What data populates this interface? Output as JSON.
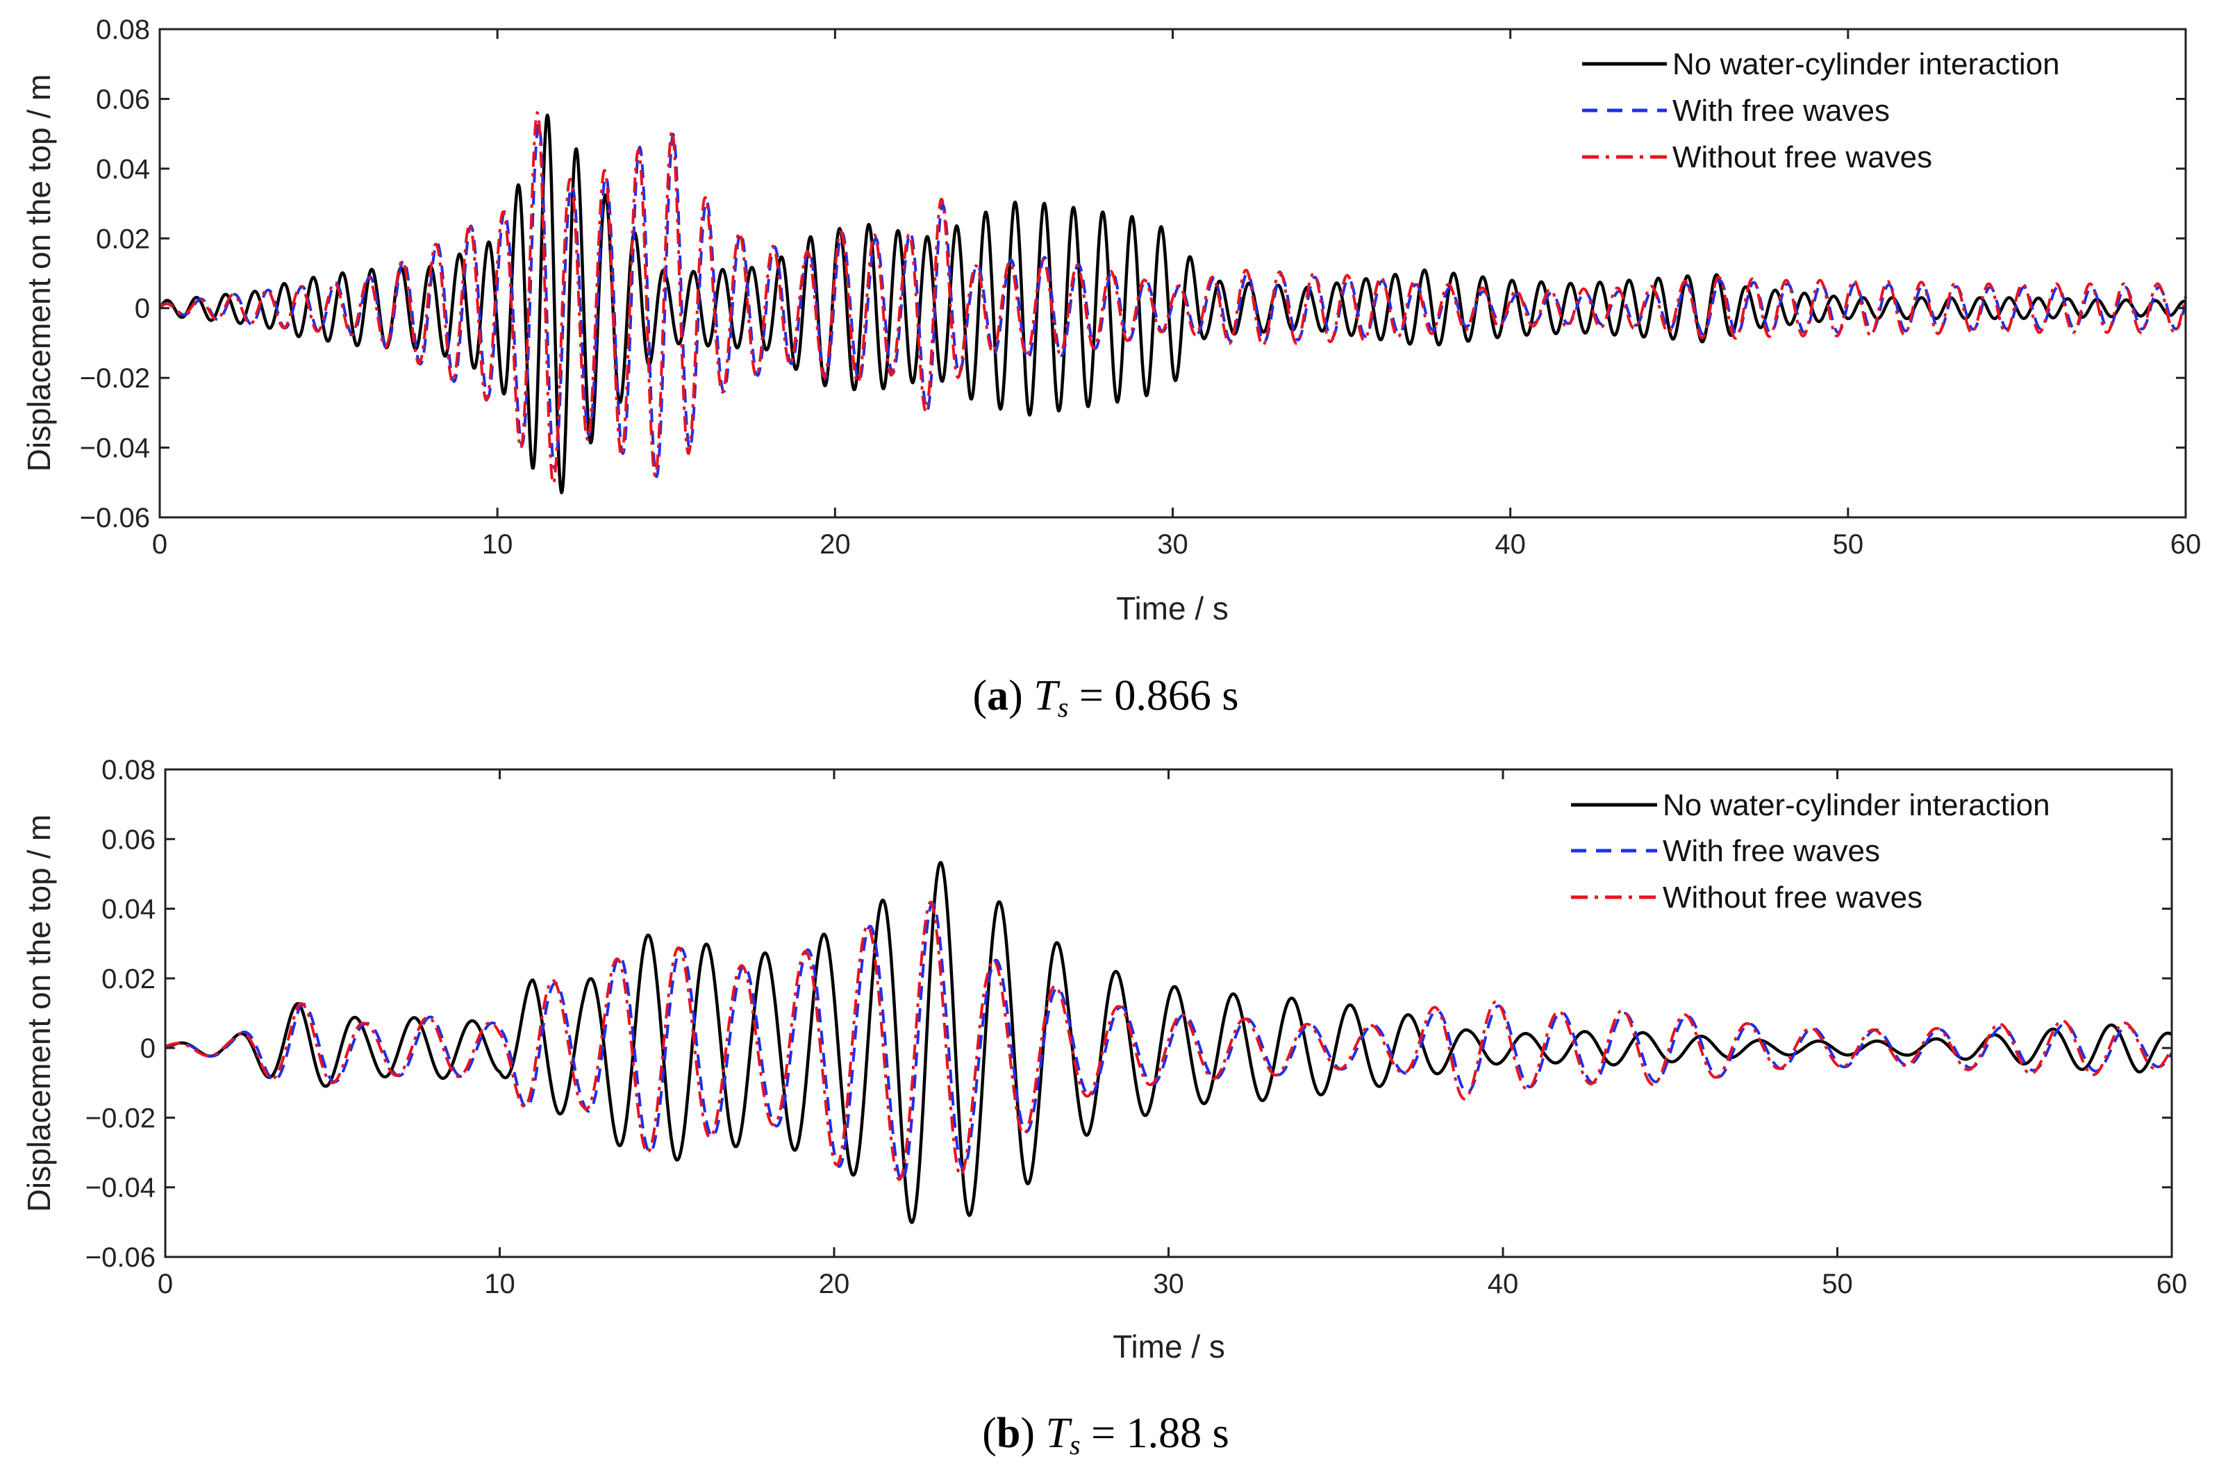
{
  "chart_data": [
    {
      "type": "line",
      "panel": "a",
      "caption": {
        "label": "a",
        "symbol": "T",
        "subscript": "s",
        "value_text": " = 0.866 s"
      },
      "xlabel": "Time / s",
      "ylabel": "Displacement on the top / m",
      "xlim": [
        0,
        60
      ],
      "ylim": [
        -0.06,
        0.08
      ],
      "xticks": [
        0,
        10,
        20,
        30,
        40,
        50,
        60
      ],
      "yticks": [
        -0.06,
        -0.04,
        -0.02,
        0,
        0.02,
        0.04,
        0.06,
        0.08
      ],
      "ytick_labels": [
        "−0.06",
        "−0.04",
        "−0.02",
        "0",
        "0.02",
        "0.04",
        "0.06",
        "0.08"
      ],
      "legend_position": "top-right",
      "series": [
        {
          "name": "No water-cylinder interaction",
          "color": "#000000",
          "style": "solid",
          "envelope": [
            [
              0,
              0.002
            ],
            [
              3,
              0.005
            ],
            [
              4,
              0.008
            ],
            [
              6,
              0.011
            ],
            [
              8,
              0.012
            ],
            [
              10,
              0.02
            ],
            [
              11,
              0.045
            ],
            [
              11.6,
              0.058
            ],
            [
              12.5,
              0.043
            ],
            [
              13,
              0.035
            ],
            [
              15,
              0.01
            ],
            [
              18,
              0.012
            ],
            [
              19.5,
              0.022
            ],
            [
              21,
              0.024
            ],
            [
              23,
              0.02
            ],
            [
              24,
              0.026
            ],
            [
              25.5,
              0.031
            ],
            [
              27,
              0.029
            ],
            [
              29,
              0.026
            ],
            [
              30,
              0.022
            ],
            [
              31,
              0.008
            ],
            [
              34,
              0.006
            ],
            [
              37.5,
              0.011
            ],
            [
              40,
              0.008
            ],
            [
              42,
              0.007
            ],
            [
              45,
              0.009
            ],
            [
              46,
              0.01
            ],
            [
              47,
              0.006
            ],
            [
              50,
              0.003
            ],
            [
              55,
              0.003
            ],
            [
              60,
              0.002
            ]
          ],
          "period": 0.866
        },
        {
          "name": "With free waves",
          "color": "#1f2fe8",
          "style": "dashed",
          "envelope": [
            [
              0,
              0.001
            ],
            [
              3,
              0.005
            ],
            [
              6,
              0.008
            ],
            [
              7.5,
              0.015
            ],
            [
              8.5,
              0.02
            ],
            [
              9.5,
              0.025
            ],
            [
              10.3,
              0.028
            ],
            [
              11.3,
              0.055
            ],
            [
              12.2,
              0.035
            ],
            [
              13.3,
              0.038
            ],
            [
              14.3,
              0.047
            ],
            [
              15.2,
              0.05
            ],
            [
              16.5,
              0.025
            ],
            [
              17.5,
              0.02
            ],
            [
              19,
              0.015
            ],
            [
              20,
              0.022
            ],
            [
              21.2,
              0.02
            ],
            [
              22,
              0.018
            ],
            [
              23,
              0.034
            ],
            [
              24,
              0.012
            ],
            [
              26,
              0.015
            ],
            [
              28,
              0.011
            ],
            [
              30,
              0.006
            ],
            [
              32,
              0.01
            ],
            [
              34,
              0.009
            ],
            [
              36,
              0.008
            ],
            [
              40,
              0.004
            ],
            [
              44,
              0.005
            ],
            [
              46,
              0.008
            ],
            [
              48,
              0.007
            ],
            [
              50,
              0.007
            ],
            [
              54,
              0.006
            ],
            [
              58,
              0.006
            ],
            [
              60,
              0.006
            ]
          ],
          "period": 1.0
        },
        {
          "name": "Without free waves",
          "color": "#e8141e",
          "style": "dash-dot",
          "envelope": [
            [
              0,
              0.001
            ],
            [
              3,
              0.005
            ],
            [
              6,
              0.008
            ],
            [
              7.5,
              0.015
            ],
            [
              8.5,
              0.02
            ],
            [
              9.5,
              0.026
            ],
            [
              10.3,
              0.028
            ],
            [
              11.3,
              0.06
            ],
            [
              12.2,
              0.036
            ],
            [
              13.3,
              0.04
            ],
            [
              14.3,
              0.046
            ],
            [
              15.2,
              0.051
            ],
            [
              16.5,
              0.025
            ],
            [
              17.5,
              0.02
            ],
            [
              19,
              0.015
            ],
            [
              20,
              0.022
            ],
            [
              21.2,
              0.021
            ],
            [
              22,
              0.018
            ],
            [
              23,
              0.035
            ],
            [
              24,
              0.012
            ],
            [
              26,
              0.014
            ],
            [
              28,
              0.011
            ],
            [
              30,
              0.006
            ],
            [
              32,
              0.011
            ],
            [
              34,
              0.01
            ],
            [
              36,
              0.009
            ],
            [
              40,
              0.005
            ],
            [
              44,
              0.006
            ],
            [
              46,
              0.009
            ],
            [
              48,
              0.008
            ],
            [
              50,
              0.008
            ],
            [
              54,
              0.007
            ],
            [
              58,
              0.007
            ],
            [
              60,
              0.007
            ]
          ],
          "period": 1.0
        }
      ]
    },
    {
      "type": "line",
      "panel": "b",
      "caption": {
        "label": "b",
        "symbol": "T",
        "subscript": "s",
        "value_text": " = 1.88 s"
      },
      "xlabel": "Time / s",
      "ylabel": "Displacement on the top / m",
      "xlim": [
        0,
        60
      ],
      "ylim": [
        -0.06,
        0.08
      ],
      "xticks": [
        0,
        10,
        20,
        30,
        40,
        50,
        60
      ],
      "yticks": [
        -0.06,
        -0.04,
        -0.02,
        0,
        0.02,
        0.04,
        0.06,
        0.08
      ],
      "ytick_labels": [
        "−0.06",
        "−0.04",
        "−0.02",
        "0",
        "0.02",
        "0.04",
        "0.06",
        "0.08"
      ],
      "legend_position": "top-right",
      "series": [
        {
          "name": "No water-cylinder interaction",
          "color": "#000000",
          "style": "solid",
          "envelope": [
            [
              0,
              0.001
            ],
            [
              2,
              0.003
            ],
            [
              4,
              0.013
            ],
            [
              6,
              0.008
            ],
            [
              8,
              0.009
            ],
            [
              10,
              0.007
            ],
            [
              11,
              0.02
            ],
            [
              12.5,
              0.018
            ],
            [
              14,
              0.032
            ],
            [
              15,
              0.033
            ],
            [
              16.5,
              0.029
            ],
            [
              18.2,
              0.027
            ],
            [
              20.3,
              0.035
            ],
            [
              21.2,
              0.04
            ],
            [
              22,
              0.048
            ],
            [
              22.9,
              0.054
            ],
            [
              23.7,
              0.052
            ],
            [
              24.6,
              0.042
            ],
            [
              25.5,
              0.042
            ],
            [
              27,
              0.027
            ],
            [
              29,
              0.02
            ],
            [
              31,
              0.016
            ],
            [
              33,
              0.015
            ],
            [
              35,
              0.013
            ],
            [
              37,
              0.01
            ],
            [
              39,
              0.005
            ],
            [
              41,
              0.004
            ],
            [
              43,
              0.005
            ],
            [
              45,
              0.004
            ],
            [
              48,
              0.002
            ],
            [
              52,
              0.002
            ],
            [
              55,
              0.004
            ],
            [
              57,
              0.006
            ],
            [
              59,
              0.007
            ],
            [
              60,
              0.004
            ]
          ],
          "period": 1.75
        },
        {
          "name": "With free waves",
          "color": "#1f2fe8",
          "style": "dashed",
          "envelope": [
            [
              0,
              0.001
            ],
            [
              2,
              0.003
            ],
            [
              4,
              0.013
            ],
            [
              6,
              0.007
            ],
            [
              8,
              0.009
            ],
            [
              10,
              0.007
            ],
            [
              11,
              0.02
            ],
            [
              12.5,
              0.017
            ],
            [
              14,
              0.03
            ],
            [
              15,
              0.03
            ],
            [
              16.5,
              0.025
            ],
            [
              18.2,
              0.022
            ],
            [
              20.3,
              0.035
            ],
            [
              21.2,
              0.035
            ],
            [
              22,
              0.038
            ],
            [
              22.9,
              0.042
            ],
            [
              23.7,
              0.037
            ],
            [
              24.6,
              0.025
            ],
            [
              25.5,
              0.026
            ],
            [
              27,
              0.015
            ],
            [
              29,
              0.011
            ],
            [
              31,
              0.009
            ],
            [
              33,
              0.008
            ],
            [
              35,
              0.006
            ],
            [
              37,
              0.007
            ],
            [
              38.6,
              0.013
            ],
            [
              40,
              0.012
            ],
            [
              42,
              0.01
            ],
            [
              44,
              0.01
            ],
            [
              46,
              0.009
            ],
            [
              48,
              0.006
            ],
            [
              52,
              0.005
            ],
            [
              55,
              0.006
            ],
            [
              57,
              0.007
            ],
            [
              59,
              0.006
            ],
            [
              60,
              0.005
            ]
          ],
          "period": 1.88
        },
        {
          "name": "Without free waves",
          "color": "#e8141e",
          "style": "dash-dot",
          "envelope": [
            [
              0,
              0.001
            ],
            [
              2,
              0.003
            ],
            [
              4,
              0.013
            ],
            [
              6,
              0.007
            ],
            [
              8,
              0.009
            ],
            [
              10,
              0.007
            ],
            [
              11,
              0.021
            ],
            [
              12.5,
              0.017
            ],
            [
              14,
              0.03
            ],
            [
              15,
              0.03
            ],
            [
              16.5,
              0.025
            ],
            [
              18.2,
              0.022
            ],
            [
              20.3,
              0.035
            ],
            [
              21.2,
              0.035
            ],
            [
              22,
              0.038
            ],
            [
              22.9,
              0.042
            ],
            [
              23.7,
              0.038
            ],
            [
              24.6,
              0.025
            ],
            [
              25.5,
              0.026
            ],
            [
              27,
              0.015
            ],
            [
              29,
              0.011
            ],
            [
              31,
              0.009
            ],
            [
              33,
              0.008
            ],
            [
              35,
              0.006
            ],
            [
              37,
              0.007
            ],
            [
              38.6,
              0.015
            ],
            [
              40,
              0.013
            ],
            [
              42,
              0.01
            ],
            [
              44,
              0.011
            ],
            [
              46,
              0.009
            ],
            [
              48,
              0.006
            ],
            [
              52,
              0.005
            ],
            [
              55,
              0.007
            ],
            [
              57,
              0.008
            ],
            [
              59,
              0.007
            ],
            [
              60,
              0.005
            ]
          ],
          "period": 1.88
        }
      ]
    }
  ]
}
